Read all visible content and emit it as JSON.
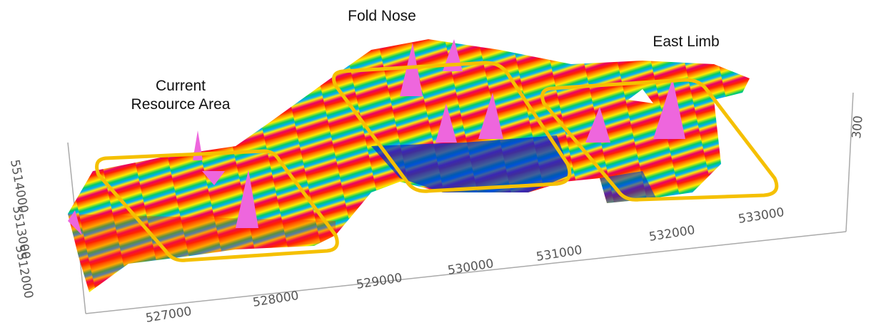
{
  "labels": {
    "current_resource_line1": "Current",
    "current_resource_line2": "Resource Area",
    "fold_nose": "Fold Nose",
    "east_limb": "East Limb"
  },
  "axes": {
    "easting_ticks": [
      "527000",
      "528000",
      "529000",
      "530000",
      "531000",
      "532000",
      "533000"
    ],
    "northing_ticks": [
      "5514000",
      "5513000",
      "5512000"
    ],
    "z_ticks": [
      "300"
    ]
  },
  "colors": {
    "highlight_box": "#f5c000",
    "colormap": [
      "#0033cc",
      "#00aaff",
      "#00cc66",
      "#ffee00",
      "#ff8800",
      "#ff2200",
      "#e8006a",
      "#ee66dd",
      "#f0a0f0"
    ]
  }
}
